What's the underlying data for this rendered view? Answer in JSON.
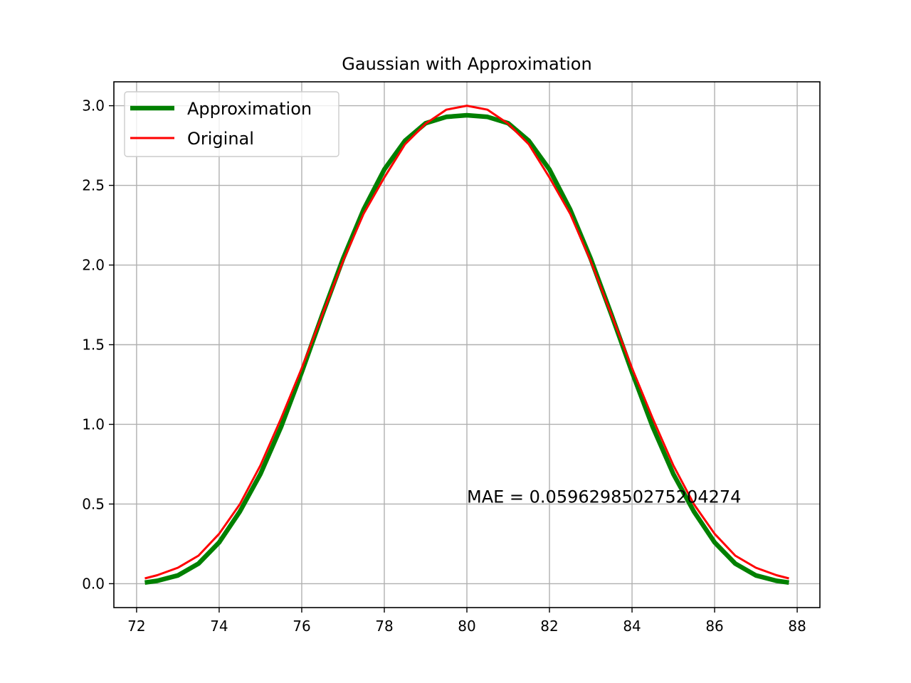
{
  "chart_data": {
    "type": "line",
    "title": "Gaussian with Approximation",
    "xlabel": "",
    "ylabel": "",
    "xlim": [
      71.45,
      88.55
    ],
    "ylim": [
      -0.15,
      3.15
    ],
    "xticks": [
      72,
      74,
      76,
      78,
      80,
      82,
      84,
      86,
      88
    ],
    "xtick_labels": [
      "72",
      "74",
      "76",
      "78",
      "80",
      "82",
      "84",
      "86",
      "88"
    ],
    "yticks": [
      0.0,
      0.5,
      1.0,
      1.5,
      2.0,
      2.5,
      3.0
    ],
    "ytick_labels": [
      "0.0",
      "0.5",
      "1.0",
      "1.5",
      "2.0",
      "2.5",
      "3.0"
    ],
    "grid": true,
    "legend_position": "upper-left",
    "series": [
      {
        "name": "Approximation",
        "color": "#008000",
        "x": [
          72.2,
          72.5,
          73.0,
          73.5,
          74.0,
          74.5,
          75.0,
          75.5,
          76.0,
          76.5,
          77.0,
          77.5,
          78.0,
          78.5,
          79.0,
          79.5,
          80.0,
          80.5,
          81.0,
          81.5,
          82.0,
          82.5,
          83.0,
          83.5,
          84.0,
          84.5,
          85.0,
          85.5,
          86.0,
          86.5,
          87.0,
          87.5,
          87.8
        ],
        "y": [
          0.007,
          0.018,
          0.052,
          0.126,
          0.259,
          0.452,
          0.688,
          0.984,
          1.328,
          1.69,
          2.04,
          2.35,
          2.6,
          2.78,
          2.89,
          2.93,
          2.94,
          2.93,
          2.89,
          2.78,
          2.6,
          2.35,
          2.04,
          1.69,
          1.328,
          0.984,
          0.688,
          0.452,
          0.259,
          0.126,
          0.052,
          0.018,
          0.007
        ]
      },
      {
        "name": "Original",
        "color": "#ff0000",
        "x": [
          72.2,
          72.5,
          73.0,
          73.5,
          74.0,
          74.5,
          75.0,
          75.5,
          76.0,
          76.5,
          77.0,
          77.5,
          78.0,
          78.5,
          79.0,
          79.5,
          80.0,
          80.5,
          81.0,
          81.5,
          82.0,
          82.5,
          83.0,
          83.5,
          84.0,
          84.5,
          85.0,
          85.5,
          86.0,
          86.5,
          87.0,
          87.5,
          87.8
        ],
        "y": [
          0.033,
          0.053,
          0.1,
          0.176,
          0.313,
          0.498,
          0.742,
          1.037,
          1.353,
          1.689,
          2.025,
          2.323,
          2.55,
          2.758,
          2.887,
          2.975,
          3.0,
          2.975,
          2.887,
          2.758,
          2.55,
          2.323,
          2.025,
          1.689,
          1.353,
          1.037,
          0.742,
          0.498,
          0.313,
          0.176,
          0.1,
          0.053,
          0.033
        ]
      }
    ],
    "annotations": [
      {
        "text": "MAE = 0.05962985027520427​4",
        "x": 80.0,
        "y": 0.5
      }
    ]
  }
}
